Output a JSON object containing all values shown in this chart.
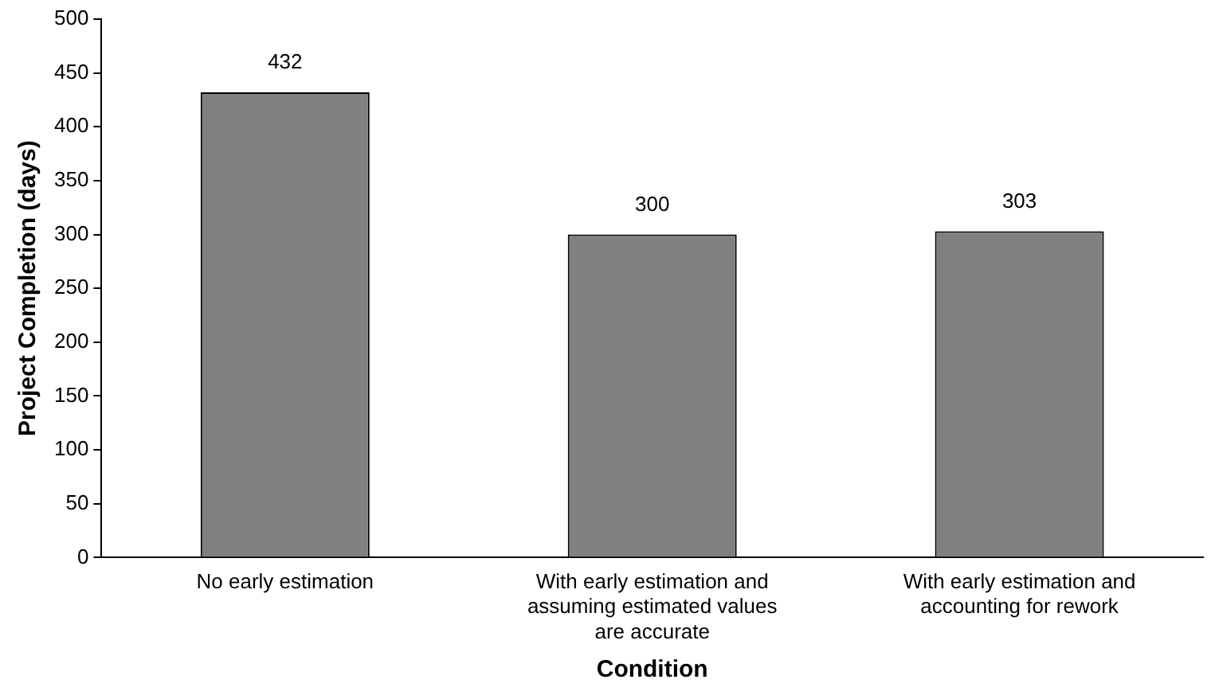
{
  "chart_data": {
    "type": "bar",
    "xlabel": "Condition",
    "ylabel": "Project Completion (days)",
    "categories": [
      "No early estimation",
      "With early estimation and assuming estimated values are accurate",
      "With early estimation and accounting for rework"
    ],
    "values": [
      432,
      300,
      303
    ],
    "color": "#808080",
    "ylim": [
      0,
      500
    ],
    "yticks": [
      0,
      50,
      100,
      150,
      200,
      250,
      300,
      350,
      400,
      450,
      500
    ],
    "grid": false,
    "data_labels": true
  }
}
